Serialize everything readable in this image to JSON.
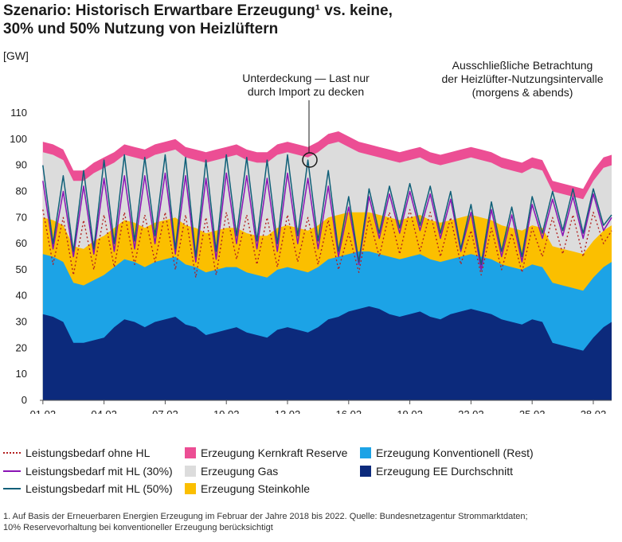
{
  "title_line1": "Szenario: Historisch Erwartbare Erzeugung¹ vs. keine,",
  "title_line2": "30% und 50% Nutzung von Heizlüftern",
  "unit": "[GW]",
  "annotations": {
    "deficit_line1": "Unterdeckung — Last nur",
    "deficit_line2": "durch Import zu decken",
    "scope_line1": "Ausschließliche Betrachtung",
    "scope_line2": "der Heizlüfter-Nutzungsintervalle",
    "scope_line3": "(morgens & abends)"
  },
  "legend": {
    "line_no_hl": "Leistungsbedarf ohne HL",
    "line_hl30": "Leistungsbedarf mit HL (30%)",
    "line_hl50": "Leistungsbedarf mit HL (50%)",
    "nuclear": "Erzeugung Kernkraft Reserve",
    "gas": "Erzeugung Gas",
    "coal": "Erzeugung Steinkohle",
    "conventional": "Erzeugung Konventionell (Rest)",
    "renewables": "Erzeugung EE Durchschnitt"
  },
  "footnote_line1": "1. Auf Basis der Erneuerbaren Energien Erzeugung im Februar der Jahre 2018 bis 2022. Quelle: Bundesnetzagentur Strommarktdaten;",
  "footnote_line2": "10% Reservevorhaltung bei konventioneller Erzeugung berücksichtigt",
  "colors": {
    "renewables": "#0c2a7c",
    "conventional": "#1ca3e6",
    "coal": "#fbbf00",
    "gas": "#dcdcdc",
    "nuclear": "#ec4e94",
    "line_no_hl": "#b32020",
    "line_hl30": "#8a14b5",
    "line_hl50": "#0f5f78"
  },
  "chart_data": {
    "type": "area",
    "x_tick_labels": [
      "01.02",
      "04.02",
      "07.02",
      "10.02",
      "13.02",
      "16.02",
      "19.02",
      "22.02",
      "25.02",
      "28.02"
    ],
    "x_tick_days": [
      1,
      4,
      7,
      10,
      13,
      16,
      19,
      22,
      25,
      28
    ],
    "xlim": [
      0.85,
      28.9
    ],
    "ylim": [
      0,
      110
    ],
    "y_ticks": [
      0,
      10,
      20,
      30,
      40,
      50,
      60,
      70,
      80,
      90,
      100,
      110
    ],
    "ylabel": "[GW]",
    "x": [
      1,
      1.5,
      2,
      2.5,
      3,
      3.5,
      4,
      4.5,
      5,
      5.5,
      6,
      6.5,
      7,
      7.5,
      8,
      8.5,
      9,
      9.5,
      10,
      10.5,
      11,
      11.5,
      12,
      12.5,
      13,
      13.5,
      14,
      14.5,
      15,
      15.5,
      16,
      16.5,
      17,
      17.5,
      18,
      18.5,
      19,
      19.5,
      20,
      20.5,
      21,
      21.5,
      22,
      22.5,
      23,
      23.5,
      24,
      24.5,
      25,
      25.5,
      26,
      26.5,
      27,
      27.5,
      28,
      28.5,
      28.9
    ],
    "stack_tops": {
      "renewables": [
        33,
        32,
        30,
        22,
        22,
        23,
        24,
        28,
        31,
        30,
        28,
        30,
        31,
        32,
        29,
        28,
        25,
        26,
        27,
        28,
        26,
        25,
        24,
        27,
        28,
        27,
        26,
        28,
        31,
        32,
        34,
        35,
        36,
        35,
        33,
        32,
        33,
        34,
        32,
        31,
        33,
        34,
        35,
        34,
        33,
        31,
        30,
        29,
        31,
        30,
        22,
        21,
        20,
        19,
        24,
        28,
        30
      ],
      "conventional": [
        56,
        55,
        53,
        45,
        44,
        46,
        48,
        51,
        54,
        53,
        51,
        53,
        54,
        55,
        52,
        51,
        49,
        50,
        51,
        51,
        49,
        48,
        47,
        50,
        51,
        50,
        49,
        51,
        54,
        55,
        56,
        57,
        57,
        56,
        55,
        54,
        55,
        56,
        54,
        53,
        54,
        55,
        56,
        55,
        54,
        52,
        51,
        50,
        52,
        51,
        45,
        44,
        43,
        42,
        47,
        51,
        53
      ],
      "coal": [
        70,
        69,
        67,
        59,
        58,
        61,
        63,
        66,
        69,
        68,
        66,
        68,
        69,
        70,
        67,
        66,
        64,
        65,
        66,
        66,
        64,
        63,
        63,
        66,
        67,
        66,
        65,
        67,
        70,
        71,
        72,
        72,
        72,
        71,
        70,
        69,
        70,
        71,
        69,
        68,
        69,
        70,
        71,
        70,
        69,
        67,
        66,
        65,
        67,
        66,
        59,
        58,
        57,
        56,
        61,
        65,
        67
      ],
      "gas": [
        95,
        94,
        92,
        84,
        84,
        87,
        89,
        91,
        94,
        93,
        92,
        94,
        95,
        96,
        93,
        92,
        91,
        92,
        93,
        94,
        92,
        91,
        91,
        94,
        95,
        94,
        93,
        95,
        98,
        99,
        97,
        95,
        94,
        93,
        92,
        91,
        92,
        93,
        91,
        90,
        91,
        92,
        93,
        92,
        91,
        89,
        88,
        87,
        89,
        88,
        80,
        79,
        78,
        77,
        84,
        89,
        90
      ],
      "nuclear": [
        99,
        98,
        96,
        88,
        88,
        91,
        93,
        95,
        98,
        97,
        96,
        98,
        99,
        100,
        97,
        96,
        95,
        96,
        97,
        98,
        96,
        95,
        95,
        98,
        99,
        98,
        97,
        99,
        102,
        103,
        101,
        99,
        98,
        97,
        96,
        95,
        96,
        97,
        95,
        94,
        95,
        96,
        97,
        96,
        95,
        93,
        92,
        91,
        93,
        92,
        84,
        83,
        82,
        81,
        88,
        93,
        94
      ]
    },
    "series": [
      {
        "name": "Leistungsbedarf ohne HL",
        "values": [
          73,
          52,
          70,
          48,
          69,
          50,
          71,
          51,
          72,
          52,
          71,
          53,
          72,
          50,
          71,
          47,
          70,
          48,
          72,
          54,
          71,
          52,
          70,
          51,
          71,
          53,
          70,
          52,
          69,
          50,
          64,
          49,
          70,
          55,
          72,
          56,
          73,
          57,
          72,
          55,
          70,
          52,
          65,
          48,
          66,
          50,
          64,
          49,
          66,
          55,
          70,
          56,
          71,
          55,
          72,
          60,
          65
        ]
      },
      {
        "name": "Leistungsbedarf mit HL (30%)",
        "values": [
          84,
          58,
          80,
          55,
          82,
          56,
          85,
          57,
          86,
          58,
          86,
          60,
          87,
          56,
          86,
          53,
          85,
          54,
          87,
          60,
          86,
          58,
          85,
          57,
          87,
          60,
          85,
          58,
          82,
          55,
          74,
          52,
          78,
          62,
          79,
          64,
          80,
          65,
          79,
          62,
          77,
          57,
          72,
          50,
          73,
          55,
          71,
          53,
          75,
          62,
          77,
          63,
          78,
          62,
          79,
          65,
          70
        ]
      },
      {
        "name": "Leistungsbedarf mit HL (50%)",
        "values": [
          90,
          60,
          86,
          57,
          88,
          58,
          92,
          60,
          94,
          61,
          93,
          63,
          94,
          58,
          93,
          55,
          92,
          57,
          94,
          63,
          93,
          61,
          92,
          60,
          94,
          63,
          92,
          61,
          88,
          57,
          78,
          53,
          81,
          64,
          82,
          66,
          83,
          67,
          82,
          64,
          80,
          58,
          75,
          52,
          76,
          57,
          74,
          55,
          78,
          64,
          80,
          65,
          81,
          64,
          81,
          67,
          71
        ]
      }
    ]
  }
}
